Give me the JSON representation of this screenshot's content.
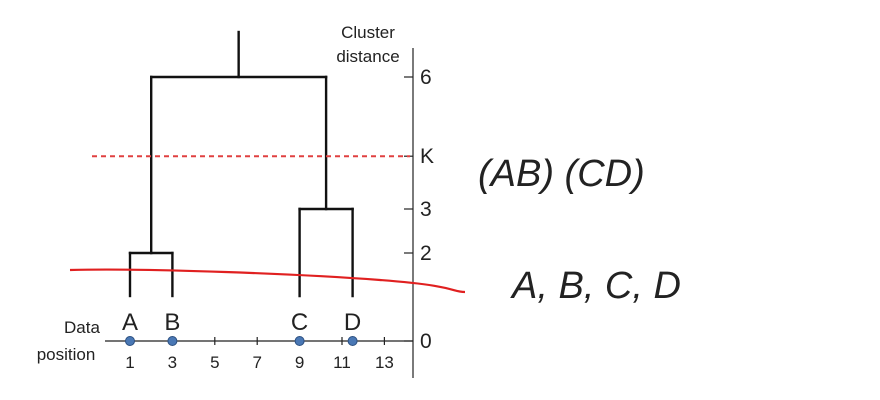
{
  "y_axis": {
    "title_line1": "Cluster",
    "title_line2": "distance",
    "ticks": [
      {
        "label": "6",
        "value": 6
      },
      {
        "label": "K",
        "value": 4.2
      },
      {
        "label": "3",
        "value": 3
      },
      {
        "label": "2",
        "value": 2
      },
      {
        "label": "0",
        "value": 0
      }
    ]
  },
  "x_axis": {
    "title_line1": "Data",
    "title_line2": "position",
    "ticks": [
      "1",
      "3",
      "5",
      "7",
      "9",
      "11",
      "13"
    ]
  },
  "points": [
    {
      "label": "A",
      "position": 1
    },
    {
      "label": "B",
      "position": 3
    },
    {
      "label": "C",
      "position": 9
    },
    {
      "label": "D",
      "position": 11.5
    }
  ],
  "dendrogram": [
    {
      "left": 1,
      "right": 3,
      "height": 2
    },
    {
      "left": 9,
      "right": 11.5,
      "height": 3
    },
    {
      "left": 2,
      "right": 10.25,
      "height": 6
    }
  ],
  "annotations": {
    "threshold_label": "K",
    "handwritten_upper": "(AB) (CD)",
    "handwritten_lower": "A, B, C, D"
  },
  "colors": {
    "tree": "#111111",
    "points": "#4a78b5",
    "threshold": "#e04040",
    "ink": "#e02020"
  }
}
